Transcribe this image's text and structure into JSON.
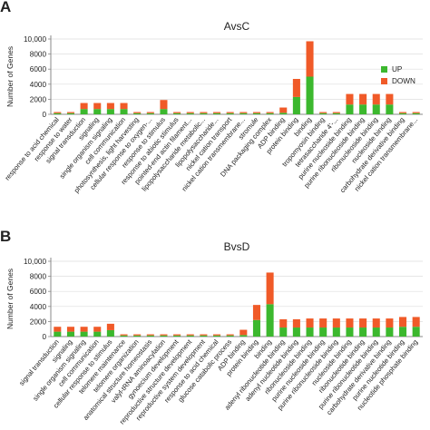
{
  "colors": {
    "up": "#3cb82e",
    "down": "#f05a28",
    "axis": "#888888",
    "grid": "#dddddd"
  },
  "chart_data": [
    {
      "type": "bar",
      "panel_label": "A",
      "title": "AvsC",
      "ylabel": "Number of Genes",
      "ylim": [
        0,
        10000
      ],
      "yticks": [
        0,
        2000,
        4000,
        6000,
        8000,
        10000
      ],
      "ytick_labels": [
        "0",
        "2000",
        "4000",
        "6000",
        "8000",
        "10,000"
      ],
      "legend": {
        "placement": "right",
        "entries": [
          "UP",
          "DOWN"
        ]
      },
      "categories": [
        "response to acid chemical",
        "response to water",
        "signal transduction",
        "signaling",
        "single organism signaling",
        "cell communication",
        "photosynthesis, light harvesting",
        "cellular response to oxygen-...",
        "response to stimulus",
        "response to abiotic stimulus",
        "pointed-end actin filament...",
        "lipopolysaccharide metabolic...",
        "lipopolysaccharide...",
        "nickel cation transport",
        "nickel cation transmembrane...",
        "stromule",
        "DNA packaging complex",
        "ADP binding",
        "protein binding",
        "binding",
        "tropomyosin binding",
        "tetrasaccharide 4'-...",
        "purine nucleoside binding",
        "purine ribonucleoside binding",
        "ribonucleoside binding",
        "nucleoside binding",
        "carbohydrate derivative binding",
        "nickel cation transmembrane..."
      ],
      "series": [
        {
          "name": "UP",
          "values": [
            150,
            150,
            700,
            700,
            700,
            700,
            150,
            150,
            700,
            150,
            150,
            150,
            150,
            150,
            150,
            150,
            150,
            200,
            2300,
            5000,
            150,
            150,
            1300,
            1300,
            1300,
            1300,
            150,
            150
          ]
        },
        {
          "name": "DOWN",
          "values": [
            150,
            150,
            800,
            800,
            800,
            800,
            150,
            150,
            1200,
            150,
            150,
            150,
            150,
            150,
            150,
            150,
            150,
            700,
            2400,
            4700,
            150,
            150,
            1400,
            1400,
            1400,
            1400,
            150,
            150
          ]
        }
      ]
    },
    {
      "type": "bar",
      "panel_label": "B",
      "title": "BvsD",
      "ylabel": "Number of Genes",
      "ylim": [
        0,
        10000
      ],
      "yticks": [
        0,
        2000,
        4000,
        6000,
        8000,
        10000
      ],
      "ytick_labels": [
        "0",
        "2000",
        "4000",
        "6000",
        "8000",
        "10,000"
      ],
      "categories": [
        "signal transduction",
        "signaling",
        "single organism signaling",
        "cell communication",
        "cellular response to stimulus",
        "telomere maintenance",
        "telomere organization",
        "anatomical structure homeostasis",
        "valyl-tRNA aminoacylation",
        "gynoecium development",
        "reproductive structure development",
        "reproductive system development",
        "response to acid chemical",
        "glucose catabolic process",
        "ADP binding",
        "protein binding",
        "binding",
        "adenyl ribonucleotide binding",
        "adenyl nucleotide binding",
        "ribonucleoside binding",
        "purine nucleoside binding",
        "purine ribonucleoside binding",
        "nucleoside binding",
        "ribonucleotide binding",
        "purine ribonucleotide binding",
        "carbohydrate derivative binding",
        "purine nucleotide binding",
        "nucleotide phosphate binding"
      ],
      "series": [
        {
          "name": "UP",
          "values": [
            650,
            650,
            650,
            650,
            850,
            150,
            150,
            150,
            150,
            150,
            150,
            150,
            150,
            150,
            200,
            2200,
            4300,
            1200,
            1200,
            1200,
            1200,
            1200,
            1200,
            1200,
            1200,
            1200,
            1300,
            1300
          ]
        },
        {
          "name": "DOWN",
          "values": [
            650,
            650,
            650,
            650,
            850,
            150,
            150,
            150,
            150,
            150,
            150,
            150,
            150,
            150,
            700,
            2000,
            4200,
            1100,
            1100,
            1200,
            1200,
            1200,
            1200,
            1200,
            1200,
            1200,
            1300,
            1300
          ]
        }
      ]
    }
  ]
}
